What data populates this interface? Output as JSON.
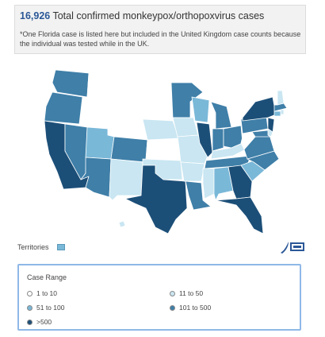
{
  "header": {
    "count": "16,926",
    "summary": "Total confirmed monkeypox/orthopoxvirus cases",
    "note": "*One Florida case is listed here but included in the United Kingdom case counts because the individual was tested while in the UK."
  },
  "colors": {
    "range_1_10": "#ffffff",
    "range_11_50": "#c9e6f2",
    "range_51_100": "#7ab8d8",
    "range_101_500": "#3f7fa8",
    "range_500_plus": "#1c4f78",
    "border": "#ffffff"
  },
  "map_states": [
    {
      "state": "WA",
      "range": "101 to 500"
    },
    {
      "state": "OR",
      "range": "101 to 500"
    },
    {
      "state": "CA",
      "range": ">500"
    },
    {
      "state": "NV",
      "range": "101 to 500"
    },
    {
      "state": "ID",
      "range": "1 to 10"
    },
    {
      "state": "MT",
      "range": "1 to 10"
    },
    {
      "state": "WY",
      "range": "1 to 10"
    },
    {
      "state": "UT",
      "range": "51 to 100"
    },
    {
      "state": "AZ",
      "range": "101 to 500"
    },
    {
      "state": "CO",
      "range": "101 to 500"
    },
    {
      "state": "NM",
      "range": "11 to 50"
    },
    {
      "state": "ND",
      "range": "1 to 10"
    },
    {
      "state": "SD",
      "range": "1 to 10"
    },
    {
      "state": "NE",
      "range": "11 to 50"
    },
    {
      "state": "KS",
      "range": "1 to 10"
    },
    {
      "state": "OK",
      "range": "11 to 50"
    },
    {
      "state": "TX",
      "range": ">500"
    },
    {
      "state": "MN",
      "range": "101 to 500"
    },
    {
      "state": "IA",
      "range": "11 to 50"
    },
    {
      "state": "MO",
      "range": "11 to 50"
    },
    {
      "state": "AR",
      "range": "11 to 50"
    },
    {
      "state": "LA",
      "range": "101 to 500"
    },
    {
      "state": "WI",
      "range": "51 to 100"
    },
    {
      "state": "IL",
      "range": ">500"
    },
    {
      "state": "MI",
      "range": "101 to 500"
    },
    {
      "state": "IN",
      "range": "101 to 500"
    },
    {
      "state": "OH",
      "range": "101 to 500"
    },
    {
      "state": "KY",
      "range": "11 to 50"
    },
    {
      "state": "TN",
      "range": "101 to 500"
    },
    {
      "state": "MS",
      "range": "11 to 50"
    },
    {
      "state": "AL",
      "range": "51 to 100"
    },
    {
      "state": "GA",
      "range": ">500"
    },
    {
      "state": "FL",
      "range": ">500"
    },
    {
      "state": "SC",
      "range": "51 to 100"
    },
    {
      "state": "NC",
      "range": "101 to 500"
    },
    {
      "state": "VA",
      "range": "101 to 500"
    },
    {
      "state": "WV",
      "range": "1 to 10"
    },
    {
      "state": "PA",
      "range": "101 to 500"
    },
    {
      "state": "NY",
      "range": ">500"
    },
    {
      "state": "NJ",
      "range": ">500"
    },
    {
      "state": "MD",
      "range": "101 to 500"
    },
    {
      "state": "DE",
      "range": "11 to 50"
    },
    {
      "state": "CT",
      "range": "51 to 100"
    },
    {
      "state": "RI",
      "range": "11 to 50"
    },
    {
      "state": "MA",
      "range": "101 to 500"
    },
    {
      "state": "VT",
      "range": "1 to 10"
    },
    {
      "state": "NH",
      "range": "11 to 50"
    },
    {
      "state": "ME",
      "range": "1 to 10"
    },
    {
      "state": "AK",
      "range": "1 to 10"
    },
    {
      "state": "HI",
      "range": "11 to 50"
    }
  ],
  "territories_label": "Territories",
  "legend": {
    "title": "Case Range",
    "items": [
      {
        "label": "1 to 10"
      },
      {
        "label": "11 to 50"
      },
      {
        "label": "51 to 100"
      },
      {
        "label": "101 to 500"
      },
      {
        "label": ">500"
      }
    ]
  }
}
